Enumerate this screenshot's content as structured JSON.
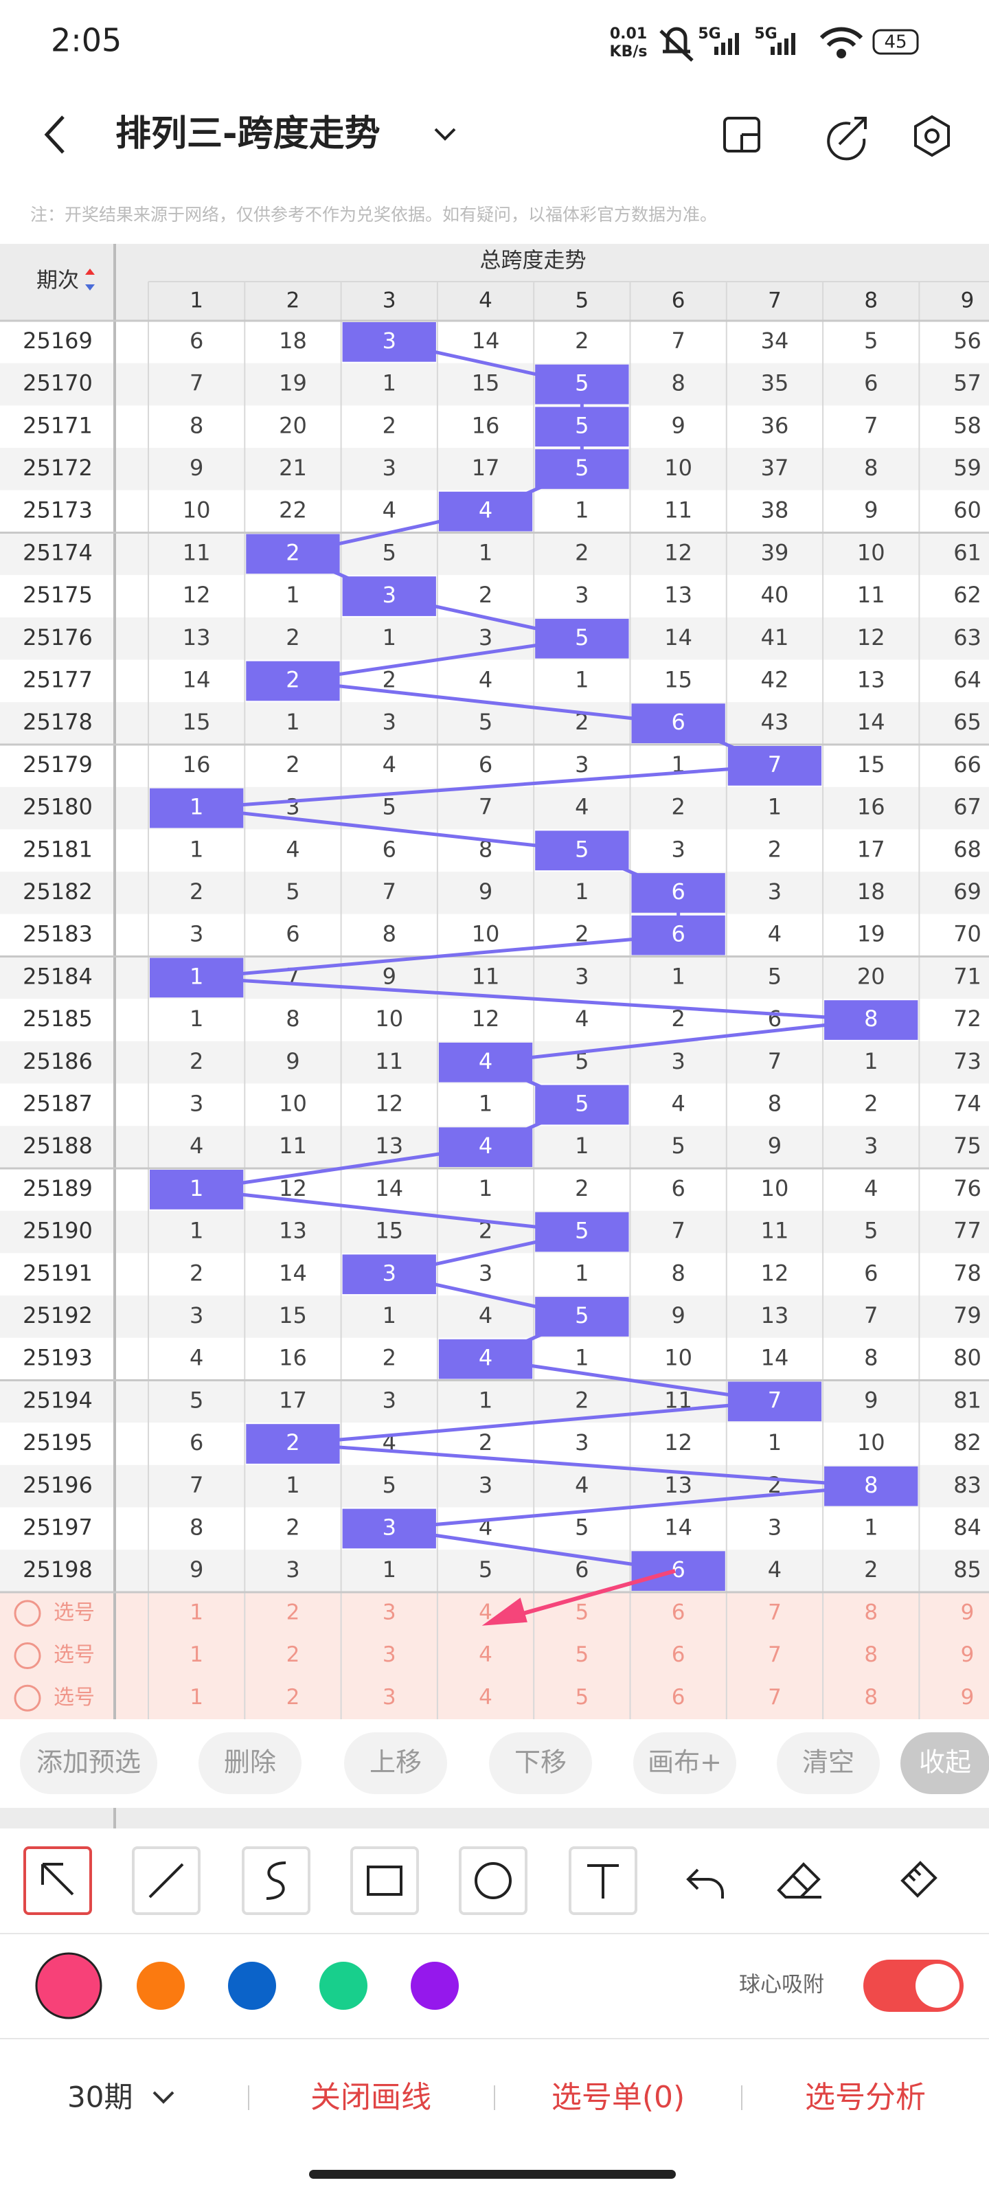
{
  "status_bar": {
    "time": "2:05",
    "net_speed": "0.01",
    "net_unit": "KB/s",
    "signal1": "5G",
    "signal2": "5G",
    "battery": "45"
  },
  "header": {
    "title": "排列三-跨度走势"
  },
  "note": "注：开奖结果来源于网络，仅供参考不作为兑奖依据。如有疑问，以福体彩官方数据为准。",
  "table": {
    "period_header": "期次",
    "group_header": "总跨度走势",
    "columns": [
      1,
      2,
      3,
      4,
      5,
      6,
      7,
      8,
      9
    ],
    "pick_label": "选号",
    "rows": [
      {
        "period": 25169,
        "cells": [
          6,
          18,
          3,
          14,
          2,
          7,
          34,
          5,
          56
        ],
        "hit": 2
      },
      {
        "period": 25170,
        "cells": [
          7,
          19,
          1,
          15,
          5,
          8,
          35,
          6,
          57
        ],
        "hit": 4
      },
      {
        "period": 25171,
        "cells": [
          8,
          20,
          2,
          16,
          5,
          9,
          36,
          7,
          58
        ],
        "hit": 4
      },
      {
        "period": 25172,
        "cells": [
          9,
          21,
          3,
          17,
          5,
          10,
          37,
          8,
          59
        ],
        "hit": 4
      },
      {
        "period": 25173,
        "cells": [
          10,
          22,
          4,
          4,
          1,
          11,
          38,
          9,
          60
        ],
        "hit": 3
      },
      {
        "period": 25174,
        "cells": [
          11,
          2,
          5,
          1,
          2,
          12,
          39,
          10,
          61
        ],
        "hit": 1
      },
      {
        "period": 25175,
        "cells": [
          12,
          1,
          3,
          2,
          3,
          13,
          40,
          11,
          62
        ],
        "hit": 2
      },
      {
        "period": 25176,
        "cells": [
          13,
          2,
          1,
          3,
          5,
          14,
          41,
          12,
          63
        ],
        "hit": 4
      },
      {
        "period": 25177,
        "cells": [
          14,
          2,
          2,
          4,
          1,
          15,
          42,
          13,
          64
        ],
        "hit": 1
      },
      {
        "period": 25178,
        "cells": [
          15,
          1,
          3,
          5,
          2,
          6,
          43,
          14,
          65
        ],
        "hit": 5
      },
      {
        "period": 25179,
        "cells": [
          16,
          2,
          4,
          6,
          3,
          1,
          7,
          15,
          66
        ],
        "hit": 6
      },
      {
        "period": 25180,
        "cells": [
          1,
          3,
          5,
          7,
          4,
          2,
          1,
          16,
          67
        ],
        "hit": 0
      },
      {
        "period": 25181,
        "cells": [
          1,
          4,
          6,
          8,
          5,
          3,
          2,
          17,
          68
        ],
        "hit": 4
      },
      {
        "period": 25182,
        "cells": [
          2,
          5,
          7,
          9,
          1,
          6,
          3,
          18,
          69
        ],
        "hit": 5
      },
      {
        "period": 25183,
        "cells": [
          3,
          6,
          8,
          10,
          2,
          6,
          4,
          19,
          70
        ],
        "hit": 5
      },
      {
        "period": 25184,
        "cells": [
          1,
          7,
          9,
          11,
          3,
          1,
          5,
          20,
          71
        ],
        "hit": 0
      },
      {
        "period": 25185,
        "cells": [
          1,
          8,
          10,
          12,
          4,
          2,
          6,
          8,
          72
        ],
        "hit": 7
      },
      {
        "period": 25186,
        "cells": [
          2,
          9,
          11,
          4,
          5,
          3,
          7,
          1,
          73
        ],
        "hit": 3
      },
      {
        "period": 25187,
        "cells": [
          3,
          10,
          12,
          1,
          5,
          4,
          8,
          2,
          74
        ],
        "hit": 4
      },
      {
        "period": 25188,
        "cells": [
          4,
          11,
          13,
          4,
          1,
          5,
          9,
          3,
          75
        ],
        "hit": 3
      },
      {
        "period": 25189,
        "cells": [
          1,
          12,
          14,
          1,
          2,
          6,
          10,
          4,
          76
        ],
        "hit": 0
      },
      {
        "period": 25190,
        "cells": [
          1,
          13,
          15,
          2,
          5,
          7,
          11,
          5,
          77
        ],
        "hit": 4
      },
      {
        "period": 25191,
        "cells": [
          2,
          14,
          3,
          3,
          1,
          8,
          12,
          6,
          78
        ],
        "hit": 2
      },
      {
        "period": 25192,
        "cells": [
          3,
          15,
          1,
          4,
          5,
          9,
          13,
          7,
          79
        ],
        "hit": 4
      },
      {
        "period": 25193,
        "cells": [
          4,
          16,
          2,
          4,
          1,
          10,
          14,
          8,
          80
        ],
        "hit": 3
      },
      {
        "period": 25194,
        "cells": [
          5,
          17,
          3,
          1,
          2,
          11,
          7,
          9,
          81
        ],
        "hit": 6
      },
      {
        "period": 25195,
        "cells": [
          6,
          2,
          4,
          2,
          3,
          12,
          1,
          10,
          82
        ],
        "hit": 1
      },
      {
        "period": 25196,
        "cells": [
          7,
          1,
          5,
          3,
          4,
          13,
          2,
          8,
          83
        ],
        "hit": 7
      },
      {
        "period": 25197,
        "cells": [
          8,
          2,
          3,
          4,
          5,
          14,
          3,
          1,
          84
        ],
        "hit": 2
      },
      {
        "period": 25198,
        "cells": [
          9,
          3,
          1,
          5,
          6,
          6,
          4,
          2,
          85
        ],
        "hit": 5
      }
    ]
  },
  "actions": [
    "添加预选",
    "删除",
    "上移",
    "下移",
    "画布+",
    "清空",
    "收起"
  ],
  "snap_label": "球心吸附",
  "snap_enabled": true,
  "bottom_nav": {
    "period_select": "30期",
    "close_draw": "关闭画线",
    "pick_list": "选号单(0)",
    "pick_analysis": "选号分析"
  }
}
